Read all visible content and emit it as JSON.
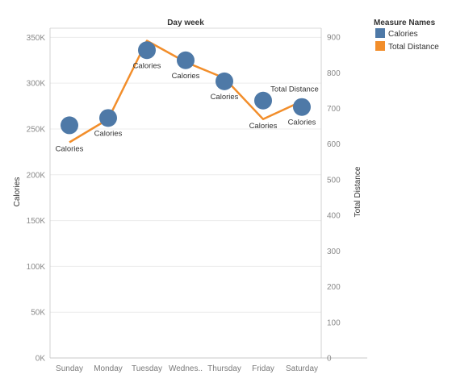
{
  "chart_data": {
    "type": "line",
    "column_header": "Day week",
    "categories": [
      "Sunday",
      "Monday",
      "Tuesday",
      "Wednes..",
      "Thursday",
      "Friday",
      "Saturday"
    ],
    "left_axis": {
      "label": "Calories",
      "ticks": [
        "0K",
        "50K",
        "100K",
        "150K",
        "200K",
        "250K",
        "300K",
        "350K"
      ],
      "ylim": [
        0,
        360000
      ]
    },
    "right_axis": {
      "label": "Total Distance",
      "ticks": [
        "0",
        "100",
        "200",
        "300",
        "400",
        "500",
        "600",
        "700",
        "800",
        "900"
      ],
      "ylim": [
        0,
        925
      ]
    },
    "series": [
      {
        "name": "Calories",
        "mark": "circle",
        "axis": "left",
        "color": "#4e79a7",
        "values": [
          254000,
          262000,
          336000,
          325000,
          302000,
          281000,
          274000
        ],
        "labels": [
          "Calories",
          "Calories",
          "Calories",
          "Calories",
          "Calories",
          "Calories",
          "Calories"
        ]
      },
      {
        "name": "Total Distance",
        "mark": "line",
        "axis": "right",
        "color": "#f28e2b",
        "values": [
          605,
          670,
          890,
          830,
          785,
          670,
          720
        ],
        "labels": [
          "",
          "",
          "",
          "",
          "",
          "",
          "Total Distance"
        ]
      }
    ],
    "legend": {
      "title": "Measure Names",
      "position": "top-right",
      "items": [
        {
          "label": "Calories",
          "color": "#4e79a7"
        },
        {
          "label": "Total Distance",
          "color": "#f28e2b"
        }
      ]
    },
    "grid": true
  }
}
